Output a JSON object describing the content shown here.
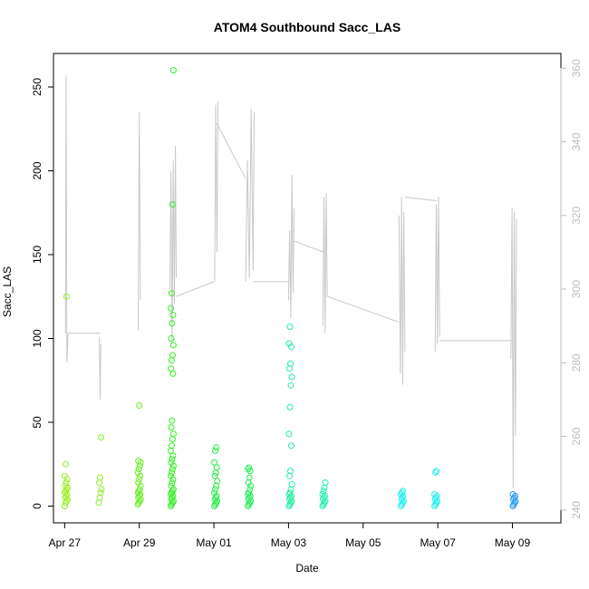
{
  "chart_data": {
    "type": "scatter",
    "title": "ATOM4 Southbound Sacc_LAS",
    "xlabel": "Date",
    "ylabel": "Sacc_LAS",
    "xlim": [
      -0.3,
      13.3
    ],
    "ylim": [
      -10,
      270
    ],
    "y2lim": [
      236.5,
      364
    ],
    "x_ticks": [
      {
        "label": "Apr 27",
        "value": 0
      },
      {
        "label": "Apr 29",
        "value": 2
      },
      {
        "label": "May 01",
        "value": 4
      },
      {
        "label": "May 03",
        "value": 6
      },
      {
        "label": "May 05",
        "value": 8
      },
      {
        "label": "May 07",
        "value": 10
      },
      {
        "label": "May 09",
        "value": 12
      }
    ],
    "y_ticks": [
      0,
      50,
      100,
      150,
      200,
      250
    ],
    "y2_ticks": [
      240,
      260,
      280,
      300,
      320,
      340,
      360
    ],
    "colors": {
      "altitude_line": "#c8c8c8",
      "right_axis": "#bdbdbd",
      "axis": "#000000"
    },
    "scatter_series": [
      {
        "name": "flight-1",
        "x": 0.04,
        "color": "#99ee22",
        "values": [
          0,
          2,
          3,
          4,
          5,
          6,
          7,
          8,
          9,
          10,
          11,
          12,
          14,
          16,
          18,
          25,
          125
        ]
      },
      {
        "name": "flight-2",
        "x": 0.95,
        "color": "#88ee22",
        "values": [
          2,
          5,
          8,
          10,
          14,
          17,
          41
        ]
      },
      {
        "name": "flight-3",
        "x": 2.0,
        "color": "#66ee22",
        "values": [
          1,
          2,
          3,
          4,
          5,
          6,
          7,
          8,
          9,
          10,
          12,
          14,
          16,
          18,
          20,
          22,
          24,
          26,
          27,
          60
        ]
      },
      {
        "name": "flight-4",
        "x": 2.88,
        "color": "#33ee22",
        "values": [
          0,
          1,
          2,
          3,
          4,
          5,
          6,
          7,
          8,
          9,
          10,
          12,
          14,
          16,
          18,
          20,
          22,
          24,
          26,
          28,
          30,
          33,
          36,
          40,
          43,
          47,
          51,
          79,
          82,
          87,
          90,
          96,
          100,
          109,
          114,
          118,
          127,
          180,
          260
        ]
      },
      {
        "name": "flight-5",
        "x": 4.05,
        "color": "#22ee44",
        "values": [
          0,
          1,
          2,
          3,
          4,
          5,
          6,
          8,
          10,
          12,
          15,
          18,
          20,
          23,
          26,
          33,
          35
        ]
      },
      {
        "name": "flight-6",
        "x": 4.95,
        "color": "#22ee55",
        "values": [
          0,
          1,
          2,
          3,
          4,
          5,
          6,
          7,
          8,
          10,
          12,
          14,
          17,
          21,
          22,
          23
        ]
      },
      {
        "name": "flight-7",
        "x": 6.05,
        "color": "#22eea0",
        "values": [
          0,
          1,
          2,
          3,
          4,
          5,
          6,
          7,
          8,
          10,
          13,
          18,
          21,
          36,
          43,
          59,
          72,
          77,
          82,
          85,
          95,
          97,
          107
        ]
      },
      {
        "name": "flight-8",
        "x": 6.95,
        "color": "#22eeaa",
        "values": [
          0,
          1,
          2,
          3,
          4,
          5,
          6,
          7,
          9,
          11,
          14
        ]
      },
      {
        "name": "flight-9",
        "x": 9.05,
        "color": "#22eeee",
        "values": [
          0,
          1,
          2,
          3,
          4,
          5,
          6,
          7,
          8,
          9
        ]
      },
      {
        "name": "flight-10",
        "x": 9.95,
        "color": "#22eeee",
        "values": [
          0,
          1,
          2,
          3,
          4,
          5,
          6,
          7,
          20,
          21
        ]
      },
      {
        "name": "flight-11",
        "x": 12.05,
        "color": "#2299ee",
        "values": [
          0,
          1,
          2,
          3,
          4,
          5,
          6,
          7
        ]
      }
    ],
    "altitude_series": [
      {
        "name": "altitude-1",
        "points": [
          [
            0.02,
            288
          ],
          [
            0.04,
            358
          ],
          [
            0.06,
            280
          ],
          [
            0.09,
            288
          ]
        ]
      },
      {
        "name": "altitude-2",
        "points": [
          [
            0.93,
            287
          ],
          [
            0.95,
            270
          ],
          [
            0.97,
            285
          ]
        ]
      },
      {
        "name": "altitude-3",
        "points": [
          [
            1.97,
            289
          ],
          [
            2.0,
            348
          ],
          [
            2.03,
            297
          ]
        ]
      },
      {
        "name": "altitude-4",
        "points": [
          [
            2.82,
            300
          ],
          [
            2.85,
            332
          ],
          [
            2.88,
            285
          ],
          [
            2.91,
            335
          ],
          [
            2.94,
            296
          ],
          [
            2.97,
            339
          ],
          [
            2.99,
            303
          ]
        ]
      },
      {
        "name": "altitude-5",
        "points": [
          [
            4.02,
            302
          ],
          [
            4.05,
            350
          ],
          [
            4.08,
            310
          ],
          [
            4.11,
            351
          ]
        ]
      },
      {
        "name": "altitude-6",
        "points": [
          [
            4.85,
            302
          ],
          [
            4.9,
            335
          ],
          [
            4.95,
            303
          ],
          [
            5.0,
            349
          ],
          [
            5.05,
            305
          ],
          [
            5.08,
            348
          ]
        ]
      },
      {
        "name": "altitude-7",
        "points": [
          [
            6.0,
            297
          ],
          [
            6.03,
            316
          ],
          [
            6.06,
            292
          ],
          [
            6.09,
            331
          ],
          [
            6.12,
            299
          ],
          [
            6.15,
            322
          ]
        ]
      },
      {
        "name": "altitude-8",
        "points": [
          [
            6.92,
            290
          ],
          [
            6.95,
            325
          ],
          [
            6.98,
            288
          ],
          [
            7.01,
            326
          ],
          [
            7.04,
            298
          ]
        ]
      },
      {
        "name": "altitude-9",
        "points": [
          [
            8.96,
            320
          ],
          [
            9.0,
            277
          ],
          [
            9.03,
            325
          ],
          [
            9.06,
            274
          ],
          [
            9.09,
            321
          ],
          [
            9.12,
            283
          ]
        ]
      },
      {
        "name": "altitude-10",
        "points": [
          [
            9.93,
            283
          ],
          [
            9.96,
            323
          ],
          [
            9.99,
            285
          ],
          [
            10.02,
            325
          ],
          [
            10.05,
            287
          ]
        ]
      },
      {
        "name": "altitude-11",
        "points": [
          [
            11.96,
            281
          ],
          [
            11.99,
            322
          ],
          [
            12.02,
            246
          ],
          [
            12.05,
            321
          ],
          [
            12.08,
            260
          ],
          [
            12.11,
            319
          ]
        ]
      }
    ],
    "altitude_connectors": [
      [
        [
          0.09,
          288
        ],
        [
          0.95,
          288
        ]
      ],
      [
        [
          1.97,
          289
        ],
        [
          2.0,
          289
        ]
      ],
      [
        [
          2.99,
          298
        ],
        [
          4.0,
          302
        ]
      ],
      [
        [
          4.08,
          345
        ],
        [
          4.85,
          330
        ]
      ],
      [
        [
          5.05,
          302
        ],
        [
          6.0,
          302
        ]
      ],
      [
        [
          6.15,
          313
        ],
        [
          6.95,
          310
        ]
      ],
      [
        [
          7.04,
          298
        ],
        [
          8.96,
          291
        ]
      ],
      [
        [
          9.12,
          325
        ],
        [
          9.96,
          324
        ]
      ],
      [
        [
          10.05,
          286
        ],
        [
          11.96,
          286
        ]
      ]
    ]
  }
}
